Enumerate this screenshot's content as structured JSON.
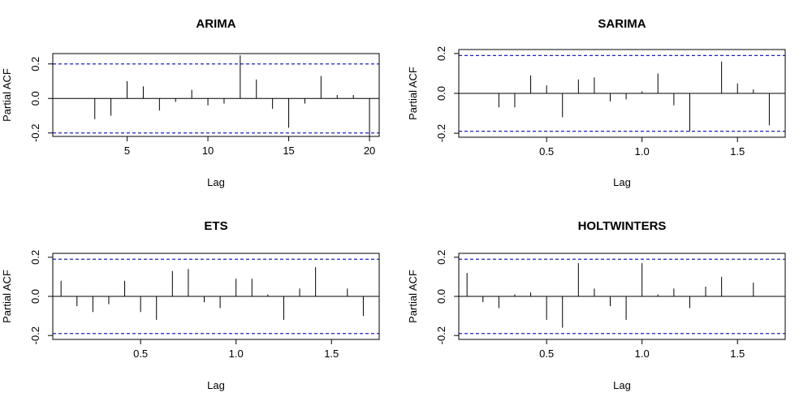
{
  "chart_data": [
    {
      "type": "bar",
      "title": "ARIMA",
      "xlabel": "Lag",
      "ylabel": "Partial ACF",
      "xlim": [
        0.4,
        20.6
      ],
      "ylim": [
        -0.22,
        0.26
      ],
      "xticks": [
        5,
        10,
        15,
        20
      ],
      "xtick_labels": [
        "5",
        "10",
        "15",
        "20"
      ],
      "yticks": [
        -0.2,
        0.0,
        0.2
      ],
      "ytick_labels": [
        "-0.2",
        "0.0",
        "0.2"
      ],
      "ci": 0.2,
      "x": [
        1,
        2,
        3,
        4,
        5,
        6,
        7,
        8,
        9,
        10,
        11,
        12,
        13,
        14,
        15,
        16,
        17,
        18,
        19,
        20
      ],
      "values": [
        0.0,
        0.0,
        -0.12,
        -0.1,
        0.1,
        0.07,
        -0.07,
        -0.02,
        0.05,
        -0.04,
        -0.03,
        0.25,
        0.11,
        -0.06,
        -0.17,
        -0.03,
        0.13,
        0.02,
        0.02,
        -0.22
      ]
    },
    {
      "type": "bar",
      "title": "SARIMA",
      "xlabel": "Lag",
      "ylabel": "Partial ACF",
      "xlim": [
        0.04,
        1.75
      ],
      "ylim": [
        -0.22,
        0.22
      ],
      "xticks": [
        0.5,
        1.0,
        1.5
      ],
      "xtick_labels": [
        "0.5",
        "1.0",
        "1.5"
      ],
      "yticks": [
        -0.2,
        0.0,
        0.2
      ],
      "ytick_labels": [
        "-0.2",
        "0.0",
        "0.2"
      ],
      "ci": 0.19,
      "x": [
        0.0833,
        0.1667,
        0.25,
        0.3333,
        0.4167,
        0.5,
        0.5833,
        0.6667,
        0.75,
        0.8333,
        0.9167,
        1.0,
        1.0833,
        1.1667,
        1.25,
        1.3333,
        1.4167,
        1.5,
        1.5833,
        1.6667
      ],
      "values": [
        0.0,
        0.0,
        -0.07,
        -0.07,
        0.09,
        0.04,
        -0.12,
        0.07,
        0.08,
        -0.04,
        -0.03,
        0.01,
        0.1,
        -0.06,
        -0.19,
        0.0,
        0.16,
        0.05,
        0.02,
        -0.16
      ]
    },
    {
      "type": "bar",
      "title": "ETS",
      "xlabel": "Lag",
      "ylabel": "Partial ACF",
      "xlim": [
        0.04,
        1.75
      ],
      "ylim": [
        -0.22,
        0.22
      ],
      "xticks": [
        0.5,
        1.0,
        1.5
      ],
      "xtick_labels": [
        "0.5",
        "1.0",
        "1.5"
      ],
      "yticks": [
        -0.2,
        0.0,
        0.2
      ],
      "ytick_labels": [
        "-0.2",
        "0.0",
        "0.2"
      ],
      "ci": 0.19,
      "x": [
        0.0833,
        0.1667,
        0.25,
        0.3333,
        0.4167,
        0.5,
        0.5833,
        0.6667,
        0.75,
        0.8333,
        0.9167,
        1.0,
        1.0833,
        1.1667,
        1.25,
        1.3333,
        1.4167,
        1.5,
        1.5833,
        1.6667
      ],
      "values": [
        0.08,
        -0.05,
        -0.08,
        -0.04,
        0.08,
        -0.08,
        -0.12,
        0.13,
        0.14,
        -0.03,
        -0.06,
        0.09,
        0.09,
        0.01,
        -0.12,
        0.04,
        0.15,
        0.0,
        0.04,
        -0.1
      ]
    },
    {
      "type": "bar",
      "title": "HOLTWINTERS",
      "xlabel": "Lag",
      "ylabel": "Partial ACF",
      "xlim": [
        0.04,
        1.75
      ],
      "ylim": [
        -0.22,
        0.22
      ],
      "xticks": [
        0.5,
        1.0,
        1.5
      ],
      "xtick_labels": [
        "0.5",
        "1.0",
        "1.5"
      ],
      "yticks": [
        -0.2,
        0.0,
        0.2
      ],
      "ytick_labels": [
        "-0.2",
        "0.0",
        "0.2"
      ],
      "ci": 0.19,
      "x": [
        0.0833,
        0.1667,
        0.25,
        0.3333,
        0.4167,
        0.5,
        0.5833,
        0.6667,
        0.75,
        0.8333,
        0.9167,
        1.0,
        1.0833,
        1.1667,
        1.25,
        1.3333,
        1.4167,
        1.5,
        1.5833,
        1.6667
      ],
      "values": [
        0.12,
        -0.03,
        -0.06,
        0.01,
        0.02,
        -0.12,
        -0.16,
        0.17,
        0.04,
        -0.05,
        -0.12,
        0.17,
        0.01,
        0.04,
        -0.06,
        0.05,
        0.1,
        0.0,
        0.07,
        0.0
      ]
    }
  ]
}
